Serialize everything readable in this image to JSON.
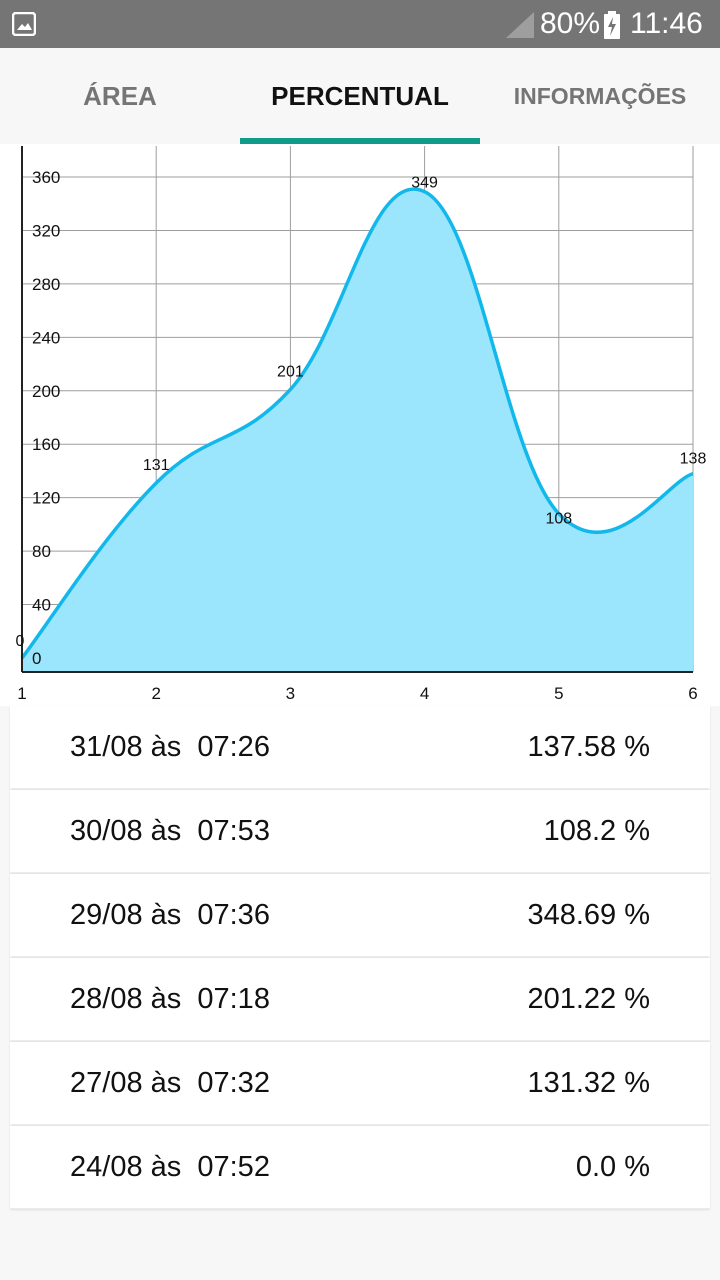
{
  "status_bar": {
    "battery": "80%",
    "time": "11:46"
  },
  "tabs": [
    {
      "label": "ÁREA",
      "active": false
    },
    {
      "label": "PERCENTUAL",
      "active": true
    },
    {
      "label": "INFORMAÇÕES",
      "active": false
    }
  ],
  "chart_data": {
    "type": "area",
    "x": [
      1,
      2,
      3,
      4,
      5,
      6
    ],
    "values": [
      0,
      131,
      201,
      349,
      108,
      138
    ],
    "value_labels": [
      "0",
      "131",
      "201",
      "349",
      "108",
      "138"
    ],
    "x_ticks": [
      "1",
      "2",
      "3",
      "4",
      "5",
      "6"
    ],
    "y_ticks": [
      "0",
      "40",
      "80",
      "120",
      "160",
      "200",
      "240",
      "280",
      "320",
      "360"
    ],
    "ylim": [
      0,
      380
    ],
    "grid": true,
    "line_color": "#12b8ec",
    "fill_color": "#9be6fc"
  },
  "records": [
    {
      "date": "31/08 às  07:26",
      "value": "137.58 %"
    },
    {
      "date": "30/08 às  07:53",
      "value": "108.2 %"
    },
    {
      "date": "29/08 às  07:36",
      "value": "348.69 %"
    },
    {
      "date": "28/08 às  07:18",
      "value": "201.22 %"
    },
    {
      "date": "27/08 às  07:32",
      "value": "131.32 %"
    },
    {
      "date": "24/08 às  07:52",
      "value": "0.0 %"
    }
  ]
}
